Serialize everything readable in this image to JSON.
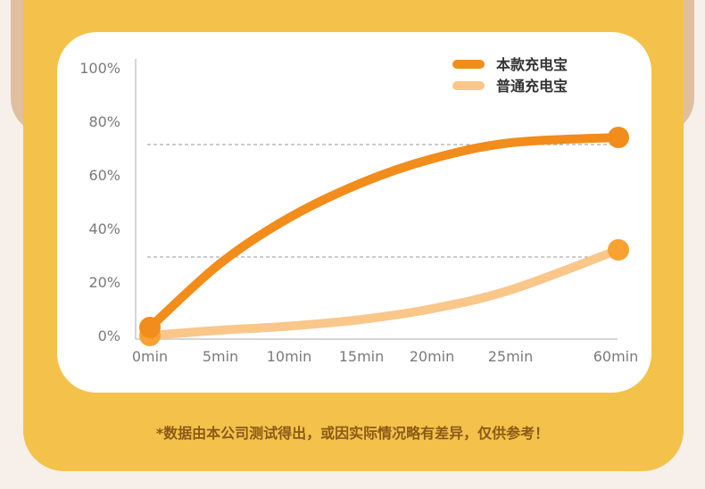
{
  "chart_data": {
    "type": "line",
    "categories": [
      "0min",
      "5min",
      "10min",
      "15min",
      "20min",
      "25min",
      "60min"
    ],
    "y_ticks": [
      "0%",
      "20%",
      "40%",
      "60%",
      "80%",
      "100%"
    ],
    "ylim": [
      0,
      100
    ],
    "grid": "dashed at start/end series levels",
    "legend_position": "top-right",
    "series": [
      {
        "name": "本款充电宝",
        "color": "#f28c1b",
        "values": [
          3,
          27,
          44,
          57,
          66,
          72,
          74
        ]
      },
      {
        "name": "普通充电宝",
        "color": "#f9c78a",
        "values": [
          0,
          2,
          3.5,
          6,
          10,
          17,
          32
        ]
      }
    ]
  },
  "footnote": "*数据由本公司测试得出，或因实际情况略有差异，仅供参考！"
}
